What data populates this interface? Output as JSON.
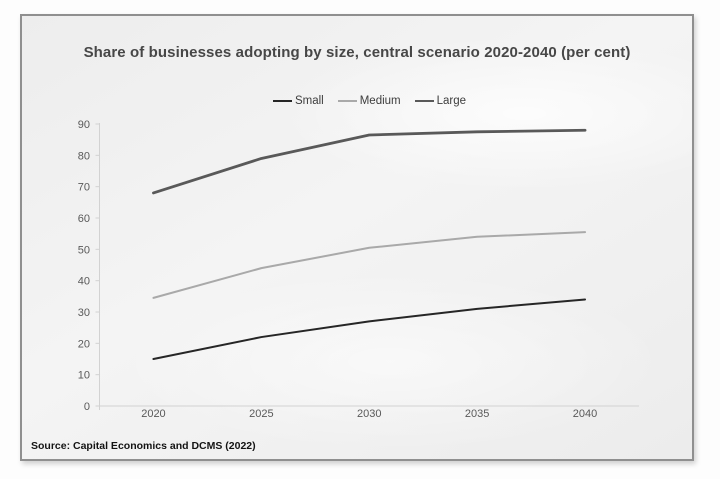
{
  "frame": {
    "page_background": "#fdfdfd",
    "card_background": "#f0f0f0",
    "card_border_color": "#8f8f8f"
  },
  "chart_data": {
    "type": "line",
    "title": "Share of businesses adopting by size, central scenario 2020-2040 (per cent)",
    "categories": [
      "2020",
      "2025",
      "2030",
      "2035",
      "2040"
    ],
    "series": [
      {
        "name": "Small",
        "color": "#262626",
        "stroke_width": 2,
        "values": [
          15,
          22,
          27,
          31,
          34
        ]
      },
      {
        "name": "Medium",
        "color": "#a9a9a9",
        "stroke_width": 2,
        "values": [
          34.5,
          44,
          50.5,
          54,
          55.5
        ]
      },
      {
        "name": "Large",
        "color": "#595959",
        "stroke_width": 2.8,
        "values": [
          68,
          79,
          86.5,
          87.5,
          88
        ]
      }
    ],
    "xlabel": "",
    "ylabel": "",
    "ylim": [
      0,
      90
    ],
    "yticks": [
      0,
      10,
      20,
      30,
      40,
      50,
      60,
      70,
      80,
      90
    ],
    "grid": false,
    "legend_position": "top-center",
    "axis_color": "#d2d2d2",
    "tick_label_color": "#595959",
    "tick_label_font_size": 11
  },
  "source": "Source: Capital Economics and DCMS (2022)"
}
